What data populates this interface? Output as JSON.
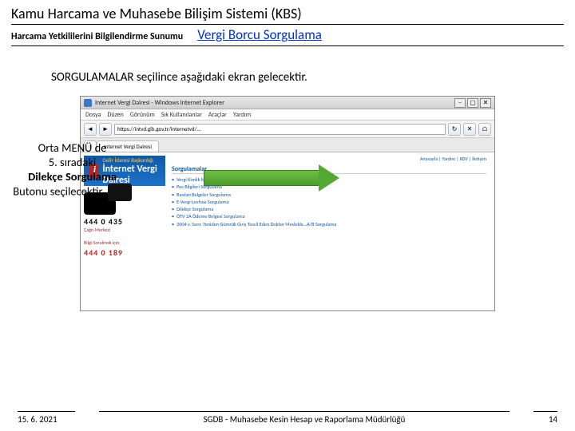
{
  "header": {
    "title": "Kamu Harcama ve Muhasebe Bilişim Sistemi  (KBS)",
    "subtitle": "Harcama Yetkililerini Bilgilendirme Sunumu",
    "link": "Vergi  Borcu Sorgulama"
  },
  "intro": "SORGULAMALAR seçilince aşağıdaki ekran gelecektir.",
  "callout": {
    "l1": "Orta  MENÜ de",
    "l2": "5. sıradaki",
    "l3": "Dilekçe Sorgulama",
    "l4": "Butonu seçilecektir."
  },
  "browser": {
    "win_title": "Internet Vergi Dairesi - Windows Internet Explorer",
    "close": "✕",
    "menu": [
      "Dosya",
      "Düzen",
      "Görünüm",
      "Sık Kullanılanlar",
      "Araçlar",
      "Yardım"
    ],
    "nav": {
      "back": "◄",
      "fwd": "►",
      "refresh": "↻",
      "stop": "✕",
      "home": "⌂"
    },
    "address": "https://intvd.gib.gov.tr/internetvd/...",
    "tab_home": "☆",
    "tab": "Internet Vergi Dairesi"
  },
  "page": {
    "banner_small": "Gelir İdaresi Başkanlığı",
    "banner_big": "İnternet Vergi Dairesi",
    "top_links": "Anasayfa | Yardım | KDV | İletişim",
    "section": "Sorgulamalar",
    "items": [
      "Vergi Kimlik Numarası Sorgulama",
      "Pos Bilgileri Sorgulama",
      "Basılan Belgeler Sorgulama",
      "E-Vergi Levhası Sorgulama",
      "Dilekçe Sorgulama",
      "ÖTV 2A Ödeme Belgesi Sorgulama",
      "2004 v. Sonr. Yeniden Gümrük Giriş Tescil Eden Doktor Meslekle…A/B Sorgulama"
    ],
    "left": {
      "num1": "444 0 435",
      "cap1": "Çağrı Merkezi",
      "cap2": "Bilgi Sorulmak için",
      "num2": "444 0 189"
    }
  },
  "footer": {
    "date": "15. 6. 2021",
    "org": "SGDB - Muhasebe Kesin Hesap ve Raporlama Müdürlüğü",
    "page": "14"
  },
  "colors": {
    "link": "#0033cc",
    "banner": "#1157a6",
    "accent_red": "#b4262a",
    "arrow": "#56a834",
    "bg": "#ffffff"
  }
}
